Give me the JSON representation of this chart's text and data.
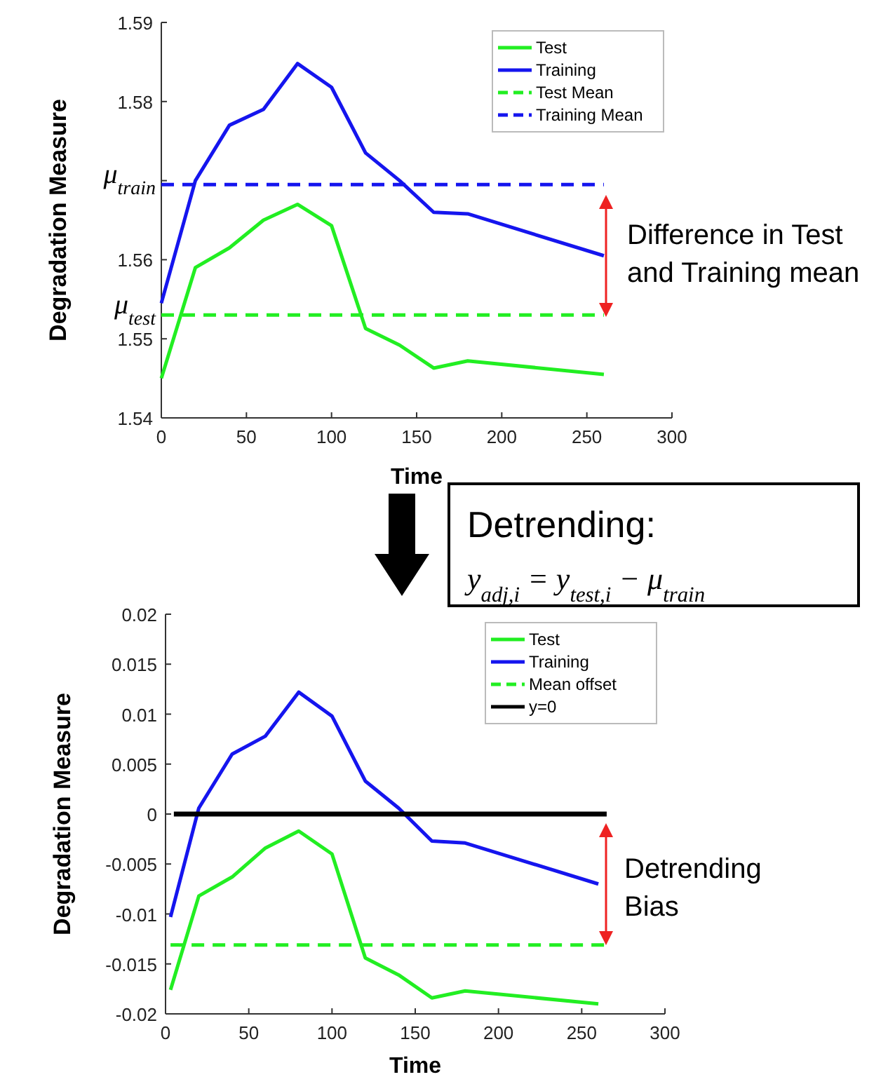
{
  "chart_data": [
    {
      "type": "line",
      "xlabel": "Time",
      "ylabel": "Degradation Measure",
      "xlim": [
        0,
        300
      ],
      "xticks": [
        0,
        50,
        100,
        150,
        200,
        250,
        300
      ],
      "ylim": [
        1.54,
        1.59
      ],
      "yticks": [
        1.54,
        1.55,
        1.56,
        {
          "value": 1.57,
          "label": null
        },
        1.58,
        1.59
      ],
      "legend": "top right",
      "grid": false,
      "x": [
        0,
        20,
        40,
        60,
        80,
        100,
        120,
        140,
        160,
        180,
        260
      ],
      "series": [
        {
          "name": "Test",
          "color": "#22ee22",
          "values": [
            1.545,
            1.559,
            1.5615,
            1.565,
            1.567,
            1.5643,
            1.5513,
            1.5492,
            1.5463,
            1.5472,
            1.5455
          ]
        },
        {
          "name": "Training",
          "color": "#1515ee",
          "values": [
            1.5545,
            1.57,
            1.577,
            1.579,
            1.5848,
            1.5818,
            1.5735,
            1.57,
            1.566,
            1.5658,
            1.5605
          ]
        },
        {
          "name": "Test Mean",
          "color": "#22ee22",
          "line_style": "dashed",
          "x": [
            0,
            260
          ],
          "values": [
            1.553,
            1.553
          ]
        },
        {
          "name": "Training Mean",
          "color": "#1515ee",
          "line_style": "dashed",
          "x": [
            0,
            260
          ],
          "values": [
            1.5695,
            1.5695
          ]
        }
      ],
      "annotations": [
        {
          "text": "μ$_{train}$",
          "x": 0,
          "y": 1.5695
        },
        {
          "text": "μ$_{test}$",
          "x": 0,
          "y": 1.553
        },
        "Difference in Test and Training mean",
        "Detrending:",
        "y$_{adj,i}$ = y$_{test,i}$ − μ$_{train}$"
      ]
    },
    {
      "type": "line",
      "xlabel": "Time",
      "ylabel": "Degradation Measure",
      "xlim": [
        0,
        300
      ],
      "xticks": [
        0,
        50,
        100,
        150,
        200,
        250,
        300
      ],
      "ylim": [
        -0.02,
        0.02
      ],
      "yticks": [
        -0.02,
        -0.015,
        -0.01,
        -0.005,
        0,
        0.005,
        0.01,
        0.015,
        0.02
      ],
      "legend": "top right",
      "grid": false,
      "x": [
        3,
        20,
        40,
        60,
        80,
        100,
        120,
        140,
        160,
        180,
        260
      ],
      "series": [
        {
          "name": "Test",
          "color": "#22ee22",
          "values": [
            -0.0176,
            -0.0082,
            -0.0063,
            -0.0034,
            -0.0017,
            -0.004,
            -0.0144,
            -0.0161,
            -0.0184,
            -0.0177,
            -0.019
          ]
        },
        {
          "name": "Training",
          "color": "#1515ee",
          "values": [
            -0.0103,
            0.0006,
            0.006,
            0.0078,
            0.0122,
            0.0098,
            0.0033,
            0.0006,
            -0.0027,
            -0.0029,
            -0.007
          ]
        },
        {
          "name": "Mean offset",
          "color": "#22ee22",
          "line_style": "dashed",
          "x": [
            3,
            265
          ],
          "values": [
            -0.0131,
            -0.0131
          ]
        },
        {
          "name": "y=0",
          "color": "#000000",
          "x": [
            5,
            265
          ],
          "values": [
            0,
            0
          ]
        }
      ],
      "annotations": [
        "Detrending Bias"
      ]
    }
  ]
}
